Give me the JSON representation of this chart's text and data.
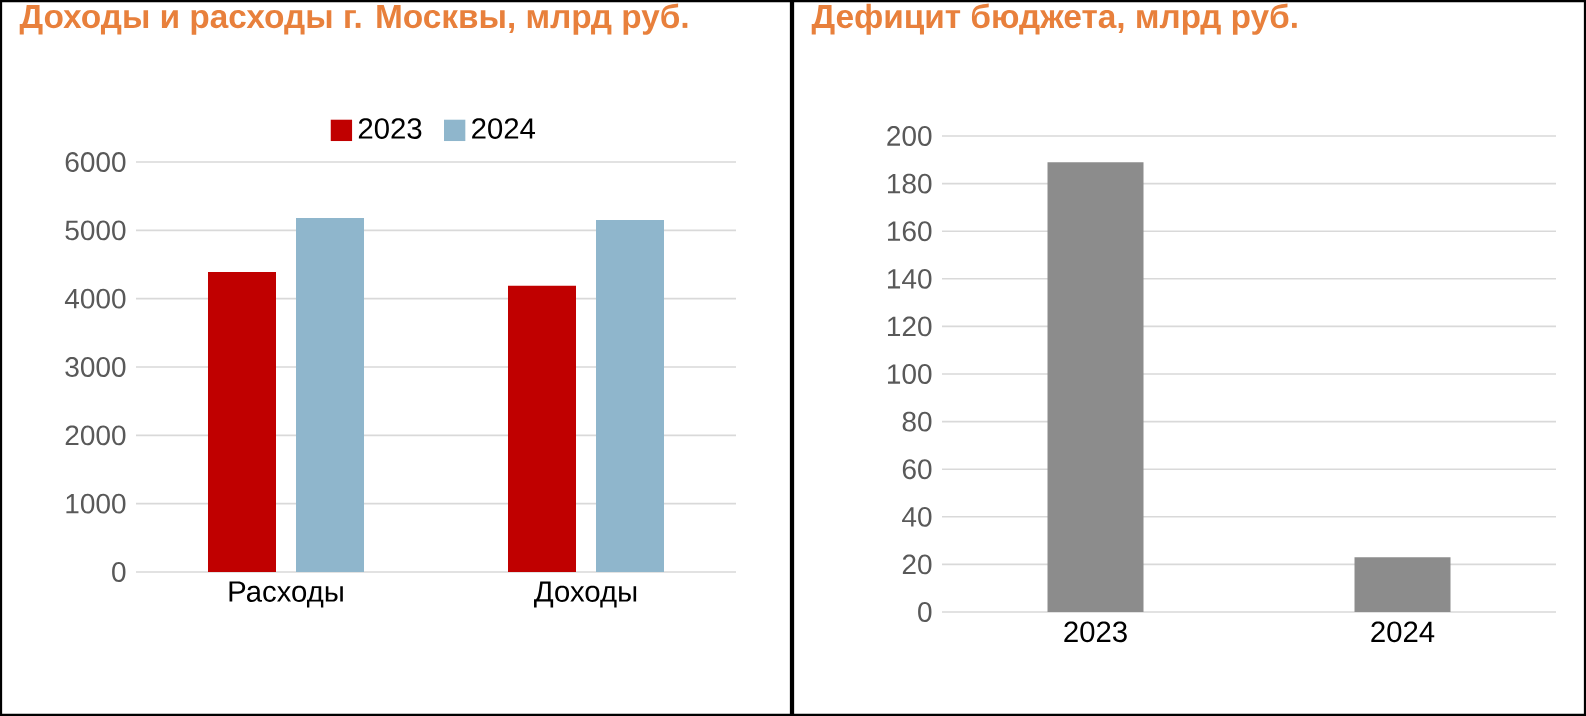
{
  "chart_data": [
    {
      "type": "bar",
      "title": "Доходы и расходы г. Москвы, млрд руб.",
      "categories": [
        "Расходы",
        "Доходы"
      ],
      "series": [
        {
          "name": "2023",
          "color": "#c00000",
          "values": [
            4390,
            4190
          ]
        },
        {
          "name": "2024",
          "color": "#8fb6cc",
          "values": [
            5180,
            5150
          ]
        }
      ],
      "ylim": [
        0,
        6000
      ],
      "yticks": [
        0,
        1000,
        2000,
        3000,
        4000,
        5000,
        6000
      ],
      "grid": "y",
      "legend": "top"
    },
    {
      "type": "bar",
      "title": "Дефицит бюджета, млрд руб.",
      "categories": [
        "2023",
        "2024"
      ],
      "values": [
        189,
        23
      ],
      "color": "#8c8c8c",
      "ylim": [
        0,
        200
      ],
      "yticks": [
        0,
        20,
        40,
        60,
        80,
        100,
        120,
        140,
        160,
        180,
        200
      ],
      "grid": "y"
    }
  ]
}
